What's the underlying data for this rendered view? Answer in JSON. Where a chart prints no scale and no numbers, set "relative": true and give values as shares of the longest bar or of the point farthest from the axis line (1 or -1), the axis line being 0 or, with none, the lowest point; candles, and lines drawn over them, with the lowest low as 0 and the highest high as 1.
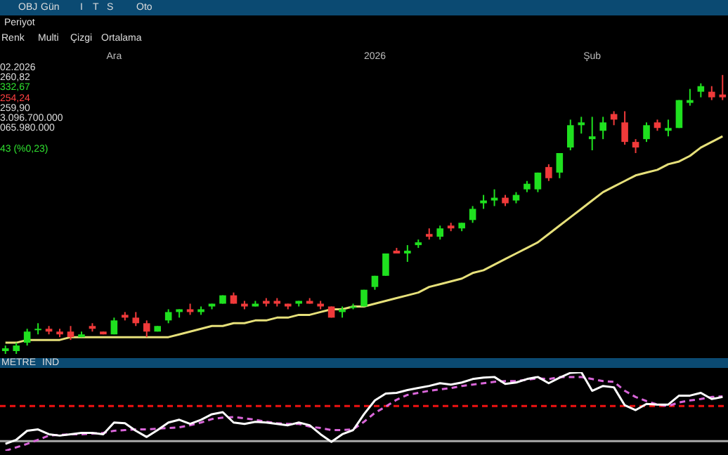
{
  "chart_data": [
    {
      "type": "candlestick",
      "relative": true,
      "categories": [
        null,
        null,
        null,
        null,
        null,
        null,
        null,
        null,
        null,
        null,
        "Ara",
        null,
        null,
        null,
        null,
        null,
        null,
        null,
        null,
        null,
        null,
        null,
        null,
        null,
        null,
        null,
        null,
        null,
        null,
        null,
        null,
        null,
        null,
        null,
        "2026",
        null,
        null,
        null,
        null,
        null,
        null,
        null,
        null,
        null,
        null,
        null,
        null,
        null,
        null,
        null,
        null,
        null,
        null,
        null,
        "Şub",
        null,
        null,
        null,
        null,
        null,
        null,
        null,
        null,
        null,
        null,
        null,
        null
      ],
      "ohlc": [
        [
          0.01,
          0.03,
          0,
          0.02
        ],
        [
          0.01,
          0.04,
          0.0,
          0.03
        ],
        [
          0.04,
          0.09,
          0.03,
          0.08
        ],
        [
          0.09,
          0.11,
          0.07,
          0.09
        ],
        [
          0.09,
          0.1,
          0.07,
          0.08
        ],
        [
          0.08,
          0.09,
          0.06,
          0.07
        ],
        [
          0.08,
          0.1,
          0.05,
          0.06
        ],
        [
          0.06,
          0.08,
          0.06,
          0.07
        ],
        [
          0.1,
          0.11,
          0.08,
          0.09
        ],
        [
          0.08,
          0.08,
          0.07,
          0.07
        ],
        [
          0.07,
          0.13,
          0.07,
          0.12
        ],
        [
          0.14,
          0.15,
          0.12,
          0.13
        ],
        [
          0.13,
          0.15,
          0.1,
          0.11
        ],
        [
          0.11,
          0.12,
          0.06,
          0.08
        ],
        [
          0.08,
          0.1,
          0.08,
          0.1
        ],
        [
          0.12,
          0.16,
          0.11,
          0.15
        ],
        [
          0.15,
          0.16,
          0.13,
          0.16
        ],
        [
          0.16,
          0.18,
          0.14,
          0.15
        ],
        [
          0.15,
          0.17,
          0.14,
          0.16
        ],
        [
          0.17,
          0.18,
          0.16,
          0.18
        ],
        [
          0.18,
          0.21,
          0.18,
          0.21
        ],
        [
          0.21,
          0.22,
          0.18,
          0.18
        ],
        [
          0.18,
          0.19,
          0.16,
          0.17
        ],
        [
          0.17,
          0.19,
          0.17,
          0.18
        ],
        [
          0.19,
          0.2,
          0.17,
          0.18
        ],
        [
          0.19,
          0.2,
          0.17,
          0.18
        ],
        [
          0.18,
          0.18,
          0.16,
          0.17
        ],
        [
          0.18,
          0.19,
          0.17,
          0.19
        ],
        [
          0.19,
          0.2,
          0.18,
          0.18
        ],
        [
          0.18,
          0.19,
          0.16,
          0.17
        ],
        [
          0.17,
          0.17,
          0.13,
          0.13
        ],
        [
          0.15,
          0.17,
          0.13,
          0.16
        ],
        [
          0.17,
          0.18,
          0.16,
          0.17
        ],
        [
          0.17,
          0.23,
          0.17,
          0.23
        ],
        [
          0.24,
          0.28,
          0.23,
          0.28
        ],
        [
          0.28,
          0.36,
          0.28,
          0.36
        ],
        [
          0.37,
          0.38,
          0.36,
          0.36
        ],
        [
          0.36,
          0.39,
          0.33,
          0.37
        ],
        [
          0.39,
          0.41,
          0.38,
          0.4
        ],
        [
          0.43,
          0.45,
          0.41,
          0.42
        ],
        [
          0.42,
          0.46,
          0.41,
          0.45
        ],
        [
          0.46,
          0.47,
          0.44,
          0.45
        ],
        [
          0.45,
          0.47,
          0.44,
          0.47
        ],
        [
          0.48,
          0.53,
          0.47,
          0.52
        ],
        [
          0.54,
          0.57,
          0.52,
          0.55
        ],
        [
          0.55,
          0.59,
          0.53,
          0.56
        ],
        [
          0.56,
          0.57,
          0.53,
          0.54
        ],
        [
          0.55,
          0.58,
          0.54,
          0.57
        ],
        [
          0.59,
          0.62,
          0.58,
          0.61
        ],
        [
          0.59,
          0.65,
          0.58,
          0.65
        ],
        [
          0.67,
          0.68,
          0.62,
          0.63
        ],
        [
          0.65,
          0.72,
          0.63,
          0.72
        ],
        [
          0.74,
          0.84,
          0.73,
          0.82
        ],
        [
          0.82,
          0.85,
          0.79,
          0.83
        ],
        [
          0.77,
          0.85,
          0.73,
          0.78
        ],
        [
          0.8,
          0.85,
          0.77,
          0.83
        ],
        [
          0.86,
          0.87,
          0.82,
          0.84
        ],
        [
          0.83,
          0.87,
          0.75,
          0.76
        ],
        [
          0.76,
          0.77,
          0.72,
          0.74
        ],
        [
          0.77,
          0.83,
          0.76,
          0.82
        ],
        [
          0.83,
          0.84,
          0.8,
          0.81
        ],
        [
          0.8,
          0.84,
          0.78,
          0.81
        ],
        [
          0.81,
          0.91,
          0.81,
          0.91
        ],
        [
          0.9,
          0.95,
          0.89,
          0.91
        ],
        [
          0.94,
          0.97,
          0.92,
          0.96
        ],
        [
          0.94,
          0.96,
          0.91,
          0.92
        ],
        [
          0.93,
          1,
          0.91,
          0.92
        ]
      ],
      "colors": [
        "#1fe01f",
        "#1fe01f",
        "#1fe01f",
        "#1fe01f",
        "#f03a3a",
        "#f03a3a",
        "#f03a3a",
        "#1fe01f",
        "#f03a3a",
        "#f03a3a",
        "#1fe01f",
        "#f03a3a",
        "#f03a3a",
        "#f03a3a",
        "#1fe01f",
        "#1fe01f",
        "#1fe01f",
        "#f03a3a",
        "#1fe01f",
        "#1fe01f",
        "#1fe01f",
        "#f03a3a",
        "#f03a3a",
        "#1fe01f",
        "#f03a3a",
        "#f03a3a",
        "#f03a3a",
        "#1fe01f",
        "#f03a3a",
        "#f03a3a",
        "#f03a3a",
        "#1fe01f",
        "#1fe01f",
        "#1fe01f",
        "#1fe01f",
        "#1fe01f",
        "#f03a3a",
        "#1fe01f",
        "#1fe01f",
        "#f03a3a",
        "#1fe01f",
        "#f03a3a",
        "#1fe01f",
        "#1fe01f",
        "#1fe01f",
        "#1fe01f",
        "#f03a3a",
        "#1fe01f",
        "#1fe01f",
        "#1fe01f",
        "#f03a3a",
        "#1fe01f",
        "#1fe01f",
        "#1fe01f",
        "#1fe01f",
        "#1fe01f",
        "#f03a3a",
        "#f03a3a",
        "#f03a3a",
        "#1fe01f",
        "#f03a3a",
        "#1fe01f",
        "#1fe01f",
        "#1fe01f",
        "#1fe01f",
        "#f03a3a",
        "#f03a3a"
      ],
      "series": [
        {
          "type": "line",
          "color": "#e6e07a",
          "values": [
            0.04,
            0.04,
            0.05,
            0.05,
            0.05,
            0.05,
            0.06,
            0.06,
            0.06,
            0.06,
            0.06,
            0.06,
            0.06,
            0.06,
            0.06,
            0.06,
            0.07,
            0.08,
            0.09,
            0.1,
            0.1,
            0.11,
            0.11,
            0.12,
            0.12,
            0.13,
            0.13,
            0.14,
            0.14,
            0.15,
            0.16,
            0.16,
            0.17,
            0.17,
            0.18,
            0.19,
            0.2,
            0.21,
            0.22,
            0.24,
            0.25,
            0.26,
            0.27,
            0.29,
            0.3,
            0.32,
            0.34,
            0.36,
            0.38,
            0.4,
            0.43,
            0.46,
            0.49,
            0.52,
            0.55,
            0.58,
            0.6,
            0.62,
            0.64,
            0.65,
            0.66,
            0.68,
            0.69,
            0.71,
            0.74,
            0.76,
            0.78
          ]
        }
      ],
      "annotations": [
        "OBJ",
        "Gün",
        "I",
        "T",
        "S",
        "Oto",
        "Periyot",
        "Renk",
        "Multi",
        "Çizgi",
        "Ortalama",
        "02.2026",
        "260,82",
        "332,67",
        "254,24",
        "259,90",
        "3.096.700.000",
        "065.980.000",
        "43 (%0,23)"
      ]
    },
    {
      "type": "line",
      "relative": true,
      "categories": [
        null,
        null,
        null,
        null,
        null,
        null,
        null,
        null,
        null,
        null,
        null,
        null,
        null,
        null,
        null,
        null,
        null,
        null,
        null,
        null,
        null,
        null,
        null,
        null,
        null,
        null,
        null,
        null,
        null,
        null,
        null,
        null,
        null,
        null,
        null,
        null,
        null,
        null,
        null,
        null,
        null,
        null,
        null,
        null,
        null,
        null,
        null,
        null,
        null,
        null,
        null,
        null,
        null,
        null,
        null,
        null,
        null,
        null,
        null,
        null,
        null,
        null,
        null,
        null,
        null,
        null,
        null
      ],
      "series": [
        {
          "color": "#ffffff",
          "values": [
            -0.04,
            0.02,
            0.15,
            0.17,
            0.1,
            0.08,
            0.1,
            0.12,
            0.12,
            0.1,
            0.27,
            0.26,
            0.15,
            0.06,
            0.16,
            0.27,
            0.31,
            0.25,
            0.31,
            0.39,
            0.42,
            0.27,
            0.25,
            0.28,
            0.27,
            0.25,
            0.23,
            0.27,
            0.23,
            0.1,
            -0.01,
            0.1,
            0.16,
            0.39,
            0.59,
            0.69,
            0.7,
            0.74,
            0.77,
            0.8,
            0.84,
            0.82,
            0.85,
            0.9,
            0.92,
            0.93,
            0.83,
            0.85,
            0.9,
            0.93,
            0.84,
            0.92,
            0.99,
            1,
            0.73,
            0.8,
            0.78,
            0.52,
            0.45,
            0.54,
            0.53,
            0.53,
            0.66,
            0.66,
            0.7,
            0.61,
            0.64
          ]
        },
        {
          "color": "#d966d9",
          "line_style": "dashed",
          "values": [
            -0.14,
            -0.09,
            -0.04,
            0.02,
            0.08,
            0.09,
            0.1,
            0.1,
            0.11,
            0.12,
            0.15,
            0.16,
            0.17,
            0.17,
            0.18,
            0.19,
            0.2,
            0.23,
            0.27,
            0.32,
            0.34,
            0.35,
            0.33,
            0.31,
            0.28,
            0.26,
            0.25,
            0.25,
            0.21,
            0.19,
            0.16,
            0.16,
            0.17,
            0.28,
            0.41,
            0.5,
            0.6,
            0.67,
            0.7,
            0.73,
            0.75,
            0.77,
            0.8,
            0.82,
            0.84,
            0.86,
            0.87,
            0.87,
            0.89,
            0.91,
            0.9,
            0.93,
            0.93,
            0.93,
            0.9,
            0.87,
            0.86,
            0.73,
            0.64,
            0.58,
            0.53,
            0.51,
            0.56,
            0.59,
            0.61,
            0.64,
            0.65
          ]
        }
      ],
      "ref_lines": [
        {
          "axis": "y",
          "value": 0.51,
          "color": "#ee1111",
          "line_style": "dashed"
        },
        {
          "axis": "y",
          "value": 0,
          "color": "#aaaaaa",
          "line_style": "solid"
        }
      ],
      "annotations": [
        "METRE",
        "IND"
      ]
    }
  ]
}
